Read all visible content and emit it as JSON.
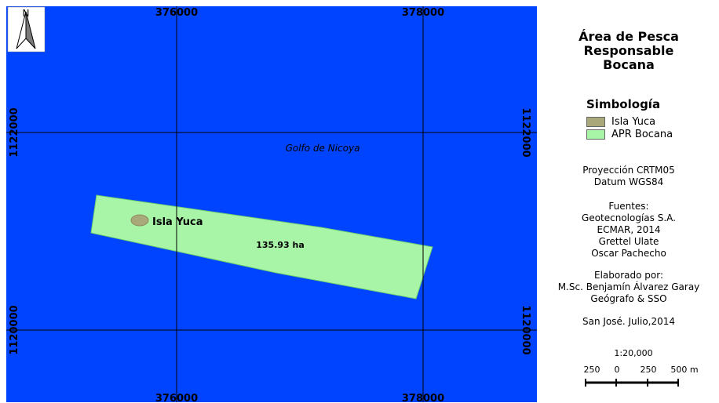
{
  "map": {
    "water_label": "Golfo de Nicoya",
    "island_label": "Isla Yuca",
    "area_label": "135.93 ha",
    "north_arrow_label": "N",
    "grid": {
      "easting_labels": [
        "376000",
        "378000"
      ],
      "northing_labels": [
        "1122000",
        "1120000"
      ]
    },
    "colors": {
      "water": "#0044ff",
      "apr": "#a8f5a8",
      "island": "#a8a87a",
      "grid_line": "#000000"
    }
  },
  "legend": {
    "title_lines": [
      "Área de Pesca",
      "Responsable",
      "Bocana"
    ],
    "symbology_heading": "Simbología",
    "items": [
      {
        "label": "Isla Yuca",
        "color": "#a8a87a"
      },
      {
        "label": "APR Bocana",
        "color": "#a8f5a8"
      }
    ],
    "projection": [
      "Proyección CRTM05",
      "Datum WGS84"
    ],
    "sources": [
      "Fuentes:",
      "Geotecnologías S.A.",
      "ECMAR, 2014",
      "Grettel Ulate",
      "Oscar Pachecho"
    ],
    "author": [
      "Elaborado por:",
      "M.Sc. Benjamín Álvarez Garay",
      "Geógrafo & SSO"
    ],
    "place_date": "San José. Julio,2014",
    "scale_ratio": "1:20,000",
    "scale_ticks": [
      "250",
      "0",
      "250",
      "500 m"
    ]
  }
}
